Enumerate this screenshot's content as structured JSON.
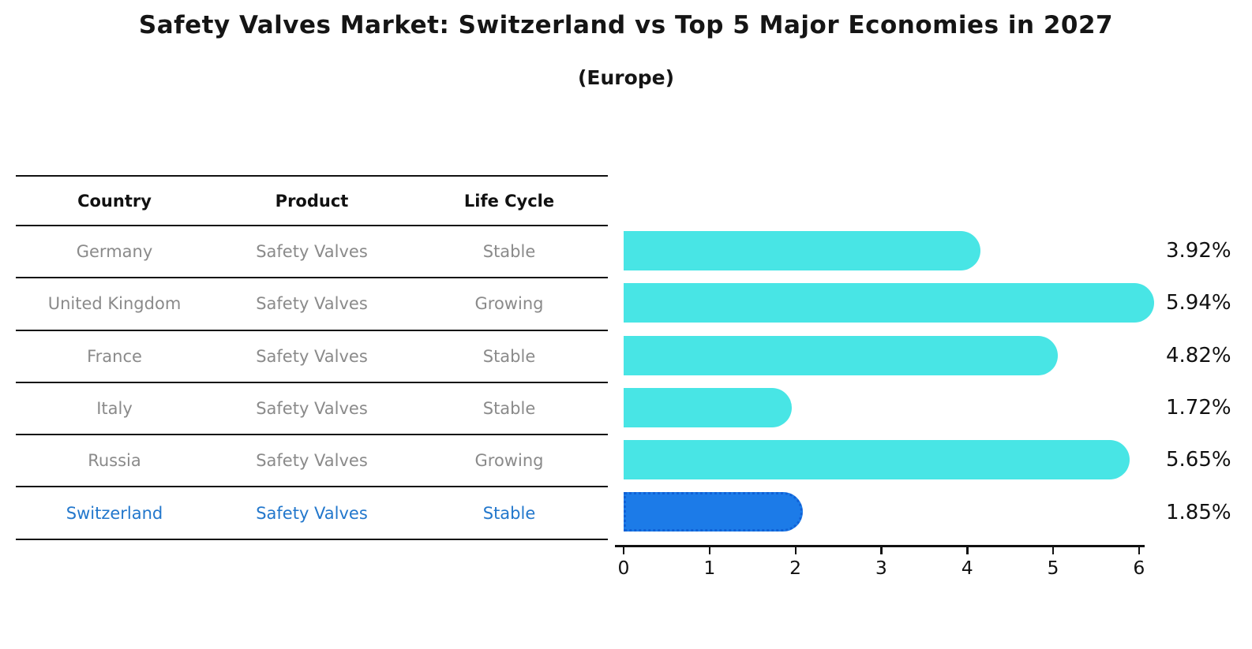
{
  "title": "Safety Valves Market: Switzerland vs Top 5 Major Economies in 2027",
  "subtitle": "(Europe)",
  "table": {
    "headers": [
      "Country",
      "Product",
      "Life Cycle"
    ],
    "rows": [
      {
        "country": "Germany",
        "product": "Safety Valves",
        "life_cycle": "Stable",
        "highlight": false
      },
      {
        "country": "United Kingdom",
        "product": "Safety Valves",
        "life_cycle": "Growing",
        "highlight": false
      },
      {
        "country": "France",
        "product": "Safety Valves",
        "life_cycle": "Stable",
        "highlight": false
      },
      {
        "country": "Italy",
        "product": "Safety Valves",
        "life_cycle": "Stable",
        "highlight": false
      },
      {
        "country": "Russia",
        "product": "Safety Valves",
        "life_cycle": "Growing",
        "highlight": false
      },
      {
        "country": "Switzerland",
        "product": "Safety Valves",
        "life_cycle": "Stable",
        "highlight": true
      }
    ]
  },
  "chart_data": {
    "type": "bar",
    "orientation": "horizontal",
    "title": "Safety Valves Market: Switzerland vs Top 5 Major Economies in 2027",
    "subtitle": "(Europe)",
    "categories": [
      "Germany",
      "United Kingdom",
      "France",
      "Italy",
      "Russia",
      "Switzerland"
    ],
    "values": [
      3.92,
      5.94,
      4.82,
      1.72,
      5.65,
      1.85
    ],
    "value_labels": [
      "3.92%",
      "5.94%",
      "4.82%",
      "1.72%",
      "5.65%",
      "1.85%"
    ],
    "xlabel": "",
    "ylabel": "",
    "xlim": [
      0,
      6.2
    ],
    "xticks": [
      0,
      1,
      2,
      3,
      4,
      5,
      6
    ],
    "grid": false,
    "legend": "none",
    "bar_color": "#48E5E5",
    "highlight_bar_color": "#1C7BE8",
    "highlight_index": 5,
    "highlight_text_color": "#2277CC",
    "row_text_color": "#8A8A8A",
    "axis_color": "#111111"
  }
}
